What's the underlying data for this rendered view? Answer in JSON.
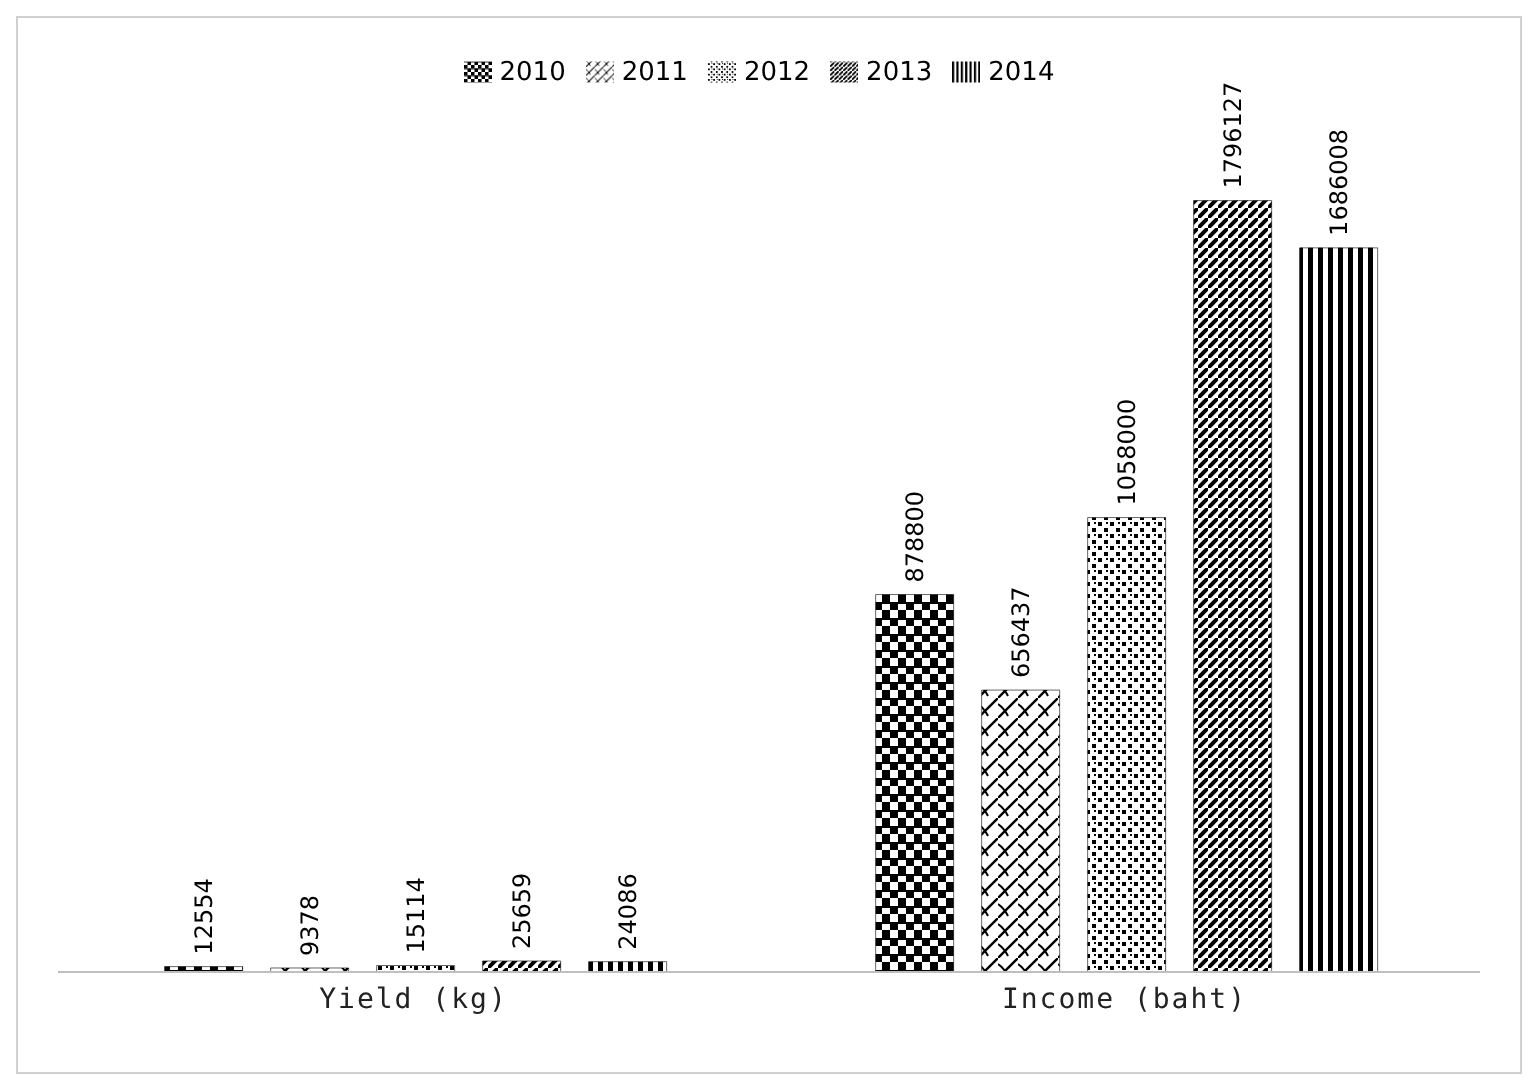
{
  "chart_data": {
    "type": "bar",
    "categories": [
      "Yield (kg)",
      "Income (baht)"
    ],
    "series": [
      {
        "name": "2010",
        "color": "#000000",
        "values": [
          12554,
          878800
        ]
      },
      {
        "name": "2011",
        "color": "#000000",
        "values": [
          9378,
          656437
        ]
      },
      {
        "name": "2012",
        "color": "#000000",
        "values": [
          15114,
          1058000
        ]
      },
      {
        "name": "2013",
        "color": "#000000",
        "values": [
          25659,
          1796127
        ]
      },
      {
        "name": "2014",
        "color": "#000000",
        "values": [
          24086,
          1686008
        ]
      }
    ],
    "data_labels": true,
    "legend": "top",
    "grid": false
  }
}
